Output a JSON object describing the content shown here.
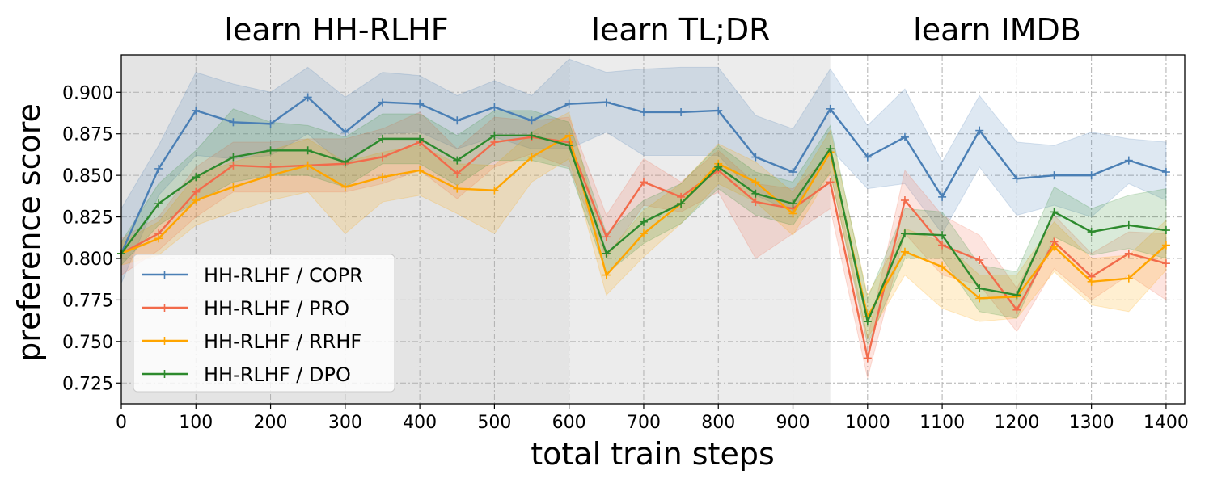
{
  "chart_data": {
    "type": "line",
    "phase_titles": [
      "learn HH-RLHF",
      "learn TL;DR",
      "learn IMDB"
    ],
    "phase_shading": [
      {
        "from": 0,
        "to": 600,
        "color": "#e4e4e4"
      },
      {
        "from": 600,
        "to": 950,
        "color": "#ececec"
      }
    ],
    "xlabel": "total train steps",
    "ylabel": "preference score",
    "xlim": [
      0,
      1425
    ],
    "ylim": [
      0.7125,
      0.9225
    ],
    "xticks": [
      0,
      100,
      200,
      300,
      400,
      500,
      600,
      700,
      800,
      900,
      1000,
      1100,
      1200,
      1300,
      1400
    ],
    "yticks": [
      "0.725",
      "0.750",
      "0.775",
      "0.800",
      "0.825",
      "0.850",
      "0.875",
      "0.900"
    ],
    "grid": true,
    "legend_position": "lower-left",
    "x": [
      0,
      50,
      100,
      150,
      200,
      250,
      300,
      350,
      400,
      450,
      500,
      550,
      600,
      650,
      700,
      750,
      800,
      850,
      900,
      950,
      1000,
      1050,
      1100,
      1150,
      1200,
      1250,
      1300,
      1350,
      1400
    ],
    "series": [
      {
        "name": "HH-RLHF / COPR",
        "color": "#4a7fb5",
        "values": [
          0.803,
          0.854,
          0.889,
          0.882,
          0.881,
          0.897,
          0.876,
          0.894,
          0.893,
          0.883,
          0.891,
          0.883,
          0.893,
          0.894,
          0.888,
          0.888,
          0.889,
          0.861,
          0.852,
          0.89,
          0.861,
          0.873,
          0.837,
          0.877,
          0.848,
          0.85,
          0.85,
          0.859,
          0.852
        ],
        "upper": [
          0.83,
          0.868,
          0.912,
          0.905,
          0.9,
          0.915,
          0.897,
          0.912,
          0.91,
          0.898,
          0.907,
          0.898,
          0.92,
          0.912,
          0.914,
          0.915,
          0.915,
          0.886,
          0.878,
          0.914,
          0.88,
          0.902,
          0.858,
          0.898,
          0.87,
          0.868,
          0.876,
          0.872,
          0.87
        ],
        "lower": [
          0.785,
          0.838,
          0.862,
          0.86,
          0.862,
          0.875,
          0.855,
          0.875,
          0.876,
          0.866,
          0.873,
          0.866,
          0.866,
          0.876,
          0.862,
          0.862,
          0.862,
          0.838,
          0.828,
          0.866,
          0.842,
          0.845,
          0.815,
          0.855,
          0.826,
          0.832,
          0.825,
          0.845,
          0.835
        ]
      },
      {
        "name": "HH-RLHF / PRO",
        "color": "#f26b4b",
        "values": [
          0.803,
          0.815,
          0.84,
          0.856,
          0.855,
          0.856,
          0.857,
          0.861,
          0.87,
          0.851,
          0.87,
          0.873,
          0.87,
          0.813,
          0.846,
          0.837,
          0.853,
          0.834,
          0.83,
          0.846,
          0.74,
          0.835,
          0.808,
          0.799,
          0.769,
          0.81,
          0.789,
          0.803,
          0.797
        ],
        "upper": [
          0.812,
          0.825,
          0.855,
          0.87,
          0.87,
          0.872,
          0.872,
          0.878,
          0.888,
          0.866,
          0.885,
          0.883,
          0.885,
          0.826,
          0.86,
          0.846,
          0.865,
          0.845,
          0.842,
          0.862,
          0.752,
          0.853,
          0.826,
          0.814,
          0.782,
          0.826,
          0.803,
          0.816,
          0.815
        ],
        "lower": [
          0.79,
          0.805,
          0.825,
          0.84,
          0.84,
          0.84,
          0.84,
          0.845,
          0.853,
          0.836,
          0.855,
          0.863,
          0.855,
          0.8,
          0.832,
          0.828,
          0.84,
          0.8,
          0.815,
          0.83,
          0.728,
          0.815,
          0.79,
          0.784,
          0.756,
          0.794,
          0.775,
          0.79,
          0.775
        ]
      },
      {
        "name": "HH-RLHF / RRHF",
        "color": "#ffa500",
        "values": [
          0.803,
          0.812,
          0.835,
          0.843,
          0.85,
          0.856,
          0.843,
          0.849,
          0.853,
          0.842,
          0.841,
          0.861,
          0.874,
          0.79,
          0.815,
          0.833,
          0.857,
          0.846,
          0.827,
          0.864,
          0.765,
          0.804,
          0.795,
          0.776,
          0.777,
          0.807,
          0.786,
          0.788,
          0.808
        ],
        "upper": [
          0.81,
          0.822,
          0.85,
          0.858,
          0.865,
          0.872,
          0.858,
          0.864,
          0.868,
          0.857,
          0.856,
          0.876,
          0.888,
          0.802,
          0.829,
          0.845,
          0.869,
          0.858,
          0.84,
          0.877,
          0.778,
          0.818,
          0.81,
          0.79,
          0.79,
          0.822,
          0.8,
          0.802,
          0.823
        ],
        "lower": [
          0.796,
          0.802,
          0.82,
          0.828,
          0.835,
          0.84,
          0.815,
          0.834,
          0.838,
          0.827,
          0.815,
          0.846,
          0.86,
          0.778,
          0.801,
          0.821,
          0.845,
          0.834,
          0.814,
          0.851,
          0.752,
          0.79,
          0.77,
          0.762,
          0.764,
          0.792,
          0.772,
          0.768,
          0.793
        ]
      },
      {
        "name": "HH-RLHF / DPO",
        "color": "#2d8a2d",
        "values": [
          0.803,
          0.833,
          0.849,
          0.861,
          0.865,
          0.865,
          0.858,
          0.872,
          0.872,
          0.859,
          0.874,
          0.874,
          0.868,
          0.803,
          0.822,
          0.833,
          0.855,
          0.839,
          0.833,
          0.866,
          0.762,
          0.815,
          0.814,
          0.782,
          0.778,
          0.828,
          0.816,
          0.82,
          0.817
        ],
        "upper": [
          0.81,
          0.845,
          0.865,
          0.89,
          0.882,
          0.88,
          0.873,
          0.887,
          0.887,
          0.874,
          0.889,
          0.889,
          0.882,
          0.815,
          0.835,
          0.845,
          0.868,
          0.852,
          0.846,
          0.88,
          0.776,
          0.83,
          0.828,
          0.796,
          0.792,
          0.843,
          0.83,
          0.838,
          0.842
        ],
        "lower": [
          0.796,
          0.82,
          0.834,
          0.846,
          0.85,
          0.85,
          0.843,
          0.857,
          0.857,
          0.844,
          0.859,
          0.859,
          0.854,
          0.791,
          0.809,
          0.821,
          0.842,
          0.826,
          0.82,
          0.852,
          0.748,
          0.8,
          0.8,
          0.768,
          0.764,
          0.813,
          0.802,
          0.806,
          0.8
        ]
      }
    ]
  }
}
